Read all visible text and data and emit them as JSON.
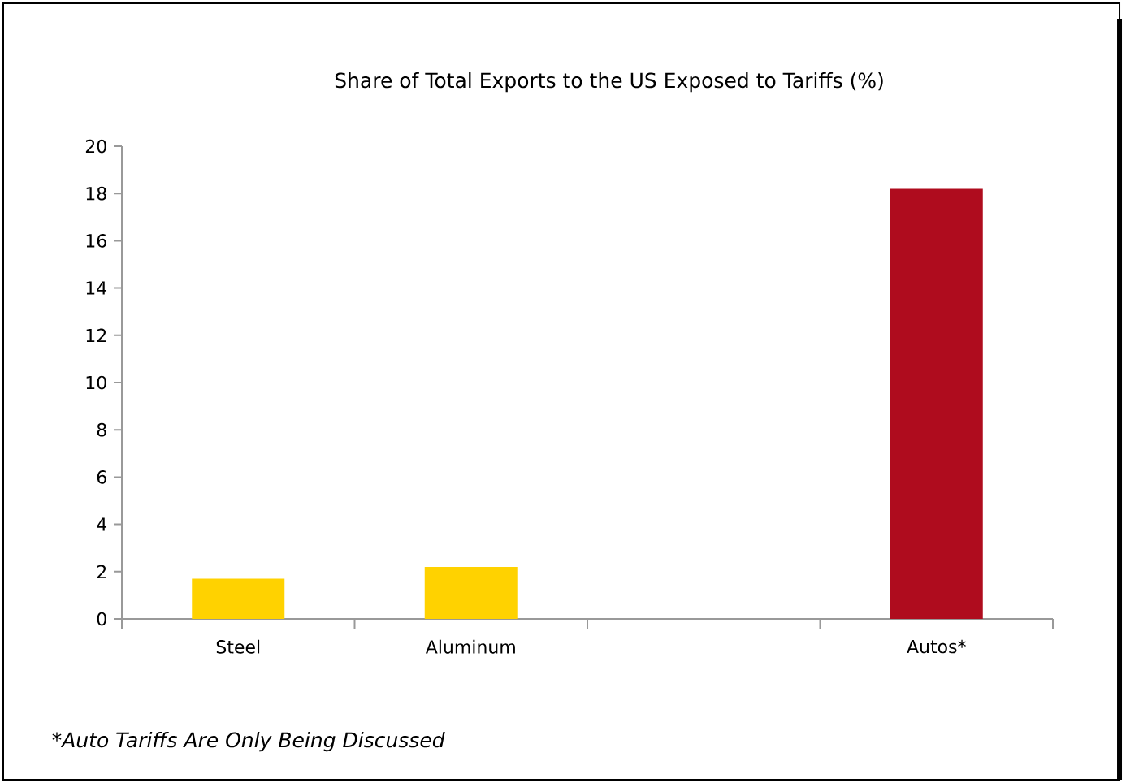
{
  "chart_data": {
    "type": "bar",
    "title": "Share of Total Exports to the US Exposed to Tariffs (%)",
    "categories": [
      "Steel",
      "Aluminum",
      null,
      "Autos*"
    ],
    "values": [
      1.7,
      2.2,
      null,
      18.2
    ],
    "colors": [
      "#ffd200",
      "#ffd200",
      null,
      "#af0c1e"
    ],
    "ylim": [
      0,
      20
    ],
    "yticks": [
      0,
      2,
      4,
      6,
      8,
      10,
      12,
      14,
      16,
      18,
      20
    ],
    "annotations": [
      "*Auto Tariffs Are Only Being Discussed"
    ]
  }
}
